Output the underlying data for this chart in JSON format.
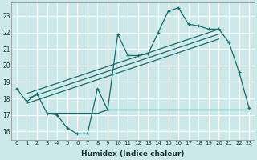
{
  "title": "",
  "xlabel": "Humidex (Indice chaleur)",
  "ylabel": "",
  "bg_color": "#cce8e8",
  "grid_color": "#b0d8d8",
  "line_color": "#1a6b6b",
  "xlim": [
    -0.5,
    23.5
  ],
  "ylim": [
    15.5,
    23.8
  ],
  "xticks": [
    0,
    1,
    2,
    3,
    4,
    5,
    6,
    7,
    8,
    9,
    10,
    11,
    12,
    13,
    14,
    15,
    16,
    17,
    18,
    19,
    20,
    21,
    22,
    23
  ],
  "yticks": [
    16,
    17,
    18,
    19,
    20,
    21,
    22,
    23
  ],
  "main_curve_x": [
    0,
    1,
    2,
    3,
    4,
    5,
    6,
    7,
    8,
    9,
    10,
    11,
    12,
    13,
    14,
    15,
    16,
    17,
    18,
    19,
    20,
    21,
    22,
    23
  ],
  "main_curve_y": [
    18.6,
    17.8,
    18.3,
    17.1,
    17.0,
    16.2,
    15.85,
    15.85,
    18.6,
    17.3,
    21.9,
    20.6,
    20.6,
    20.7,
    22.0,
    23.3,
    23.5,
    22.5,
    22.4,
    22.2,
    22.2,
    21.4,
    19.6,
    17.4
  ],
  "flat_line_x": [
    3,
    8,
    9,
    10,
    11,
    12,
    13,
    14,
    15,
    16,
    17,
    18,
    19,
    20,
    21,
    22,
    23
  ],
  "flat_line_y": [
    17.1,
    17.1,
    17.3,
    17.3,
    17.3,
    17.3,
    17.3,
    17.3,
    17.3,
    17.3,
    17.3,
    17.3,
    17.3,
    17.3,
    17.3,
    17.3,
    17.3
  ],
  "trend_line1_x": [
    1,
    20
  ],
  "trend_line1_y": [
    18.3,
    22.2
  ],
  "trend_line2_x": [
    1,
    20
  ],
  "trend_line2_y": [
    18.0,
    21.9
  ],
  "trend_line3_x": [
    1,
    20
  ],
  "trend_line3_y": [
    17.7,
    21.6
  ]
}
